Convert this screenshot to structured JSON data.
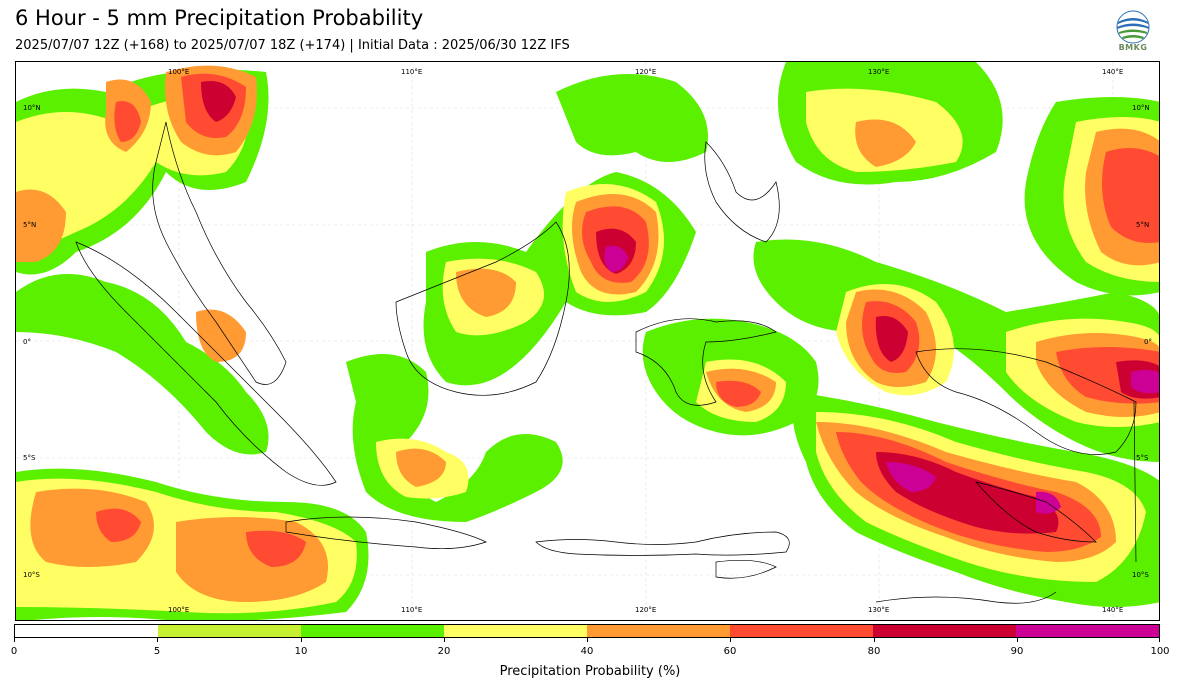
{
  "header": {
    "title": "6 Hour - 5 mm Precipitation Probability",
    "subtitle": "2025/07/07 12Z (+168) to 2025/07/07 18Z (+174) | Initial Data : 2025/06/30 12Z IFS",
    "logo_text": "BMKG"
  },
  "map": {
    "lon_labels": [
      "100°E",
      "110°E",
      "120°E",
      "130°E",
      "140°E"
    ],
    "lat_labels": [
      "10°N",
      "5°N",
      "0°",
      "5°S",
      "10°S"
    ]
  },
  "colorbar": {
    "title": "Precipitation Probability (%)",
    "ticks": [
      "0",
      "5",
      "10",
      "20",
      "40",
      "60",
      "80",
      "90",
      "100"
    ],
    "colors": [
      "#ffffff",
      "#c8f032",
      "#5af000",
      "#ffff64",
      "#ff9b32",
      "#ff4b32",
      "#cd0032",
      "#cd0096"
    ]
  }
}
